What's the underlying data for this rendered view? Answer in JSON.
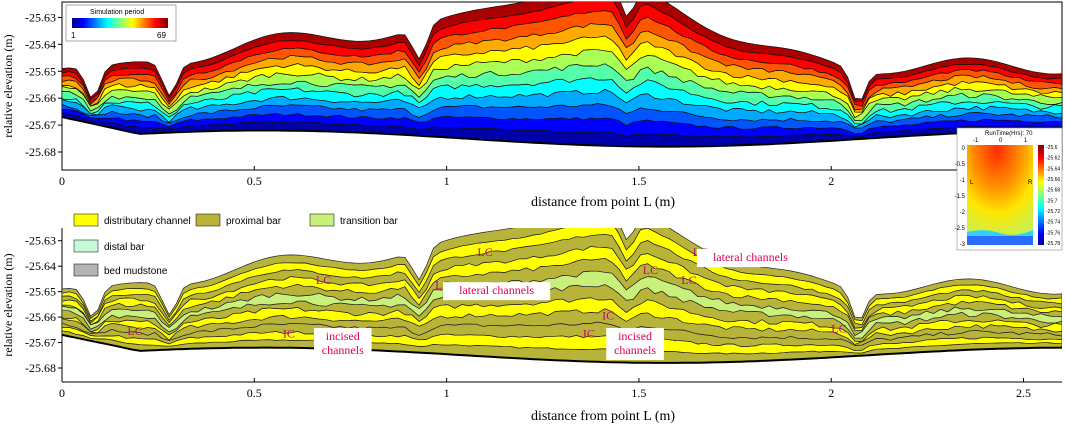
{
  "chart_data": [
    {
      "type": "area",
      "panel": "simulation-period",
      "xlabel": "distance from point L (m)",
      "ylabel": "relative elevation (m)",
      "xlim": [
        0,
        2.6
      ],
      "ylim": [
        -25.68,
        -25.625
      ],
      "xticks": [
        "0",
        "0.5",
        "1",
        "1.5",
        "2"
      ],
      "yticks": [
        "-25.63",
        "-25.64",
        "-25.65",
        "-25.66",
        "-25.67",
        "-25.68"
      ],
      "colorbar": {
        "title": "Simulation period",
        "min_label": "1",
        "max_label": "69"
      },
      "layer_count": 12,
      "inset": {
        "title": "RunTime(Hrs):  70",
        "left_label": "L",
        "right_label": "R",
        "xticks": [
          "-1",
          "0",
          "1"
        ],
        "yticks": [
          "0",
          "-0.5",
          "-1",
          "-1.5",
          "-2",
          "-2.5",
          "-3"
        ],
        "cticks": [
          "-25.6",
          "-25.62",
          "-25.64",
          "-25.66",
          "-25.68",
          "-25.7",
          "-25.72",
          "-25.74",
          "-25.76",
          "-25.78"
        ]
      }
    },
    {
      "type": "area",
      "panel": "facies",
      "xlabel": "distance from point L (m)",
      "ylabel": "relative elevation (m)",
      "xlim": [
        0,
        2.6
      ],
      "ylim": [
        -25.68,
        -25.625
      ],
      "xticks": [
        "0",
        "0.5",
        "1",
        "1.5",
        "2",
        "2.5"
      ],
      "yticks": [
        "-25.63",
        "-25.64",
        "-25.65",
        "-25.66",
        "-25.67",
        "-25.68"
      ],
      "legend": [
        {
          "label": "distributary channel",
          "color": "#ffff00"
        },
        {
          "label": "proximal  bar",
          "color": "#b8b43a"
        },
        {
          "label": "transition bar",
          "color": "#c8f07a"
        },
        {
          "label": "distal  bar",
          "color": "#c8f8d8"
        },
        {
          "label": "bed mudstone",
          "color": "#b4b4b4"
        }
      ],
      "annotations": [
        {
          "text": "LC",
          "x": 0.68,
          "y": -25.647
        },
        {
          "text": "LC",
          "x": 0.99,
          "y": -25.649
        },
        {
          "text": "LC",
          "x": 1.1,
          "y": -25.636
        },
        {
          "text": "LC",
          "x": 1.53,
          "y": -25.643
        },
        {
          "text": "LC",
          "x": 1.63,
          "y": -25.647
        },
        {
          "text": "LC",
          "x": 1.66,
          "y": -25.636
        },
        {
          "text": "LC",
          "x": 0.19,
          "y": -25.667
        },
        {
          "text": "LC",
          "x": 2.02,
          "y": -25.666
        },
        {
          "text": "IC",
          "x": 0.59,
          "y": -25.668
        },
        {
          "text": "IC",
          "x": 1.37,
          "y": -25.668
        },
        {
          "text": "IC",
          "x": 1.42,
          "y": -25.661
        }
      ],
      "boxed_annotations": [
        {
          "lines": [
            "lateral channels"
          ],
          "x": 1.13,
          "y": -25.651
        },
        {
          "lines": [
            "lateral channels"
          ],
          "x": 1.79,
          "y": -25.638
        },
        {
          "lines": [
            "incised",
            "channels"
          ],
          "x": 0.73,
          "y": -25.669
        },
        {
          "lines": [
            "incised",
            "channels"
          ],
          "x": 1.49,
          "y": -25.669
        }
      ]
    }
  ],
  "colors": {
    "channel": "#ffff00",
    "proximal": "#b8b43a",
    "transition": "#c8f07a",
    "distal": "#c8f8d8",
    "mudstone": "#b4b4b4",
    "annotation": "#c8006e"
  }
}
